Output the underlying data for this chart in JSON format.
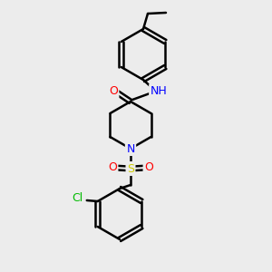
{
  "background_color": "#ececec",
  "bond_color": "#000000",
  "bond_width": 1.8,
  "atom_colors": {
    "N": "#0000ff",
    "O": "#ff0000",
    "S": "#cccc00",
    "Cl": "#00bb00",
    "C": "#000000",
    "H": "#008888"
  },
  "font_size": 9,
  "ring_r": 28,
  "pip_r": 26
}
